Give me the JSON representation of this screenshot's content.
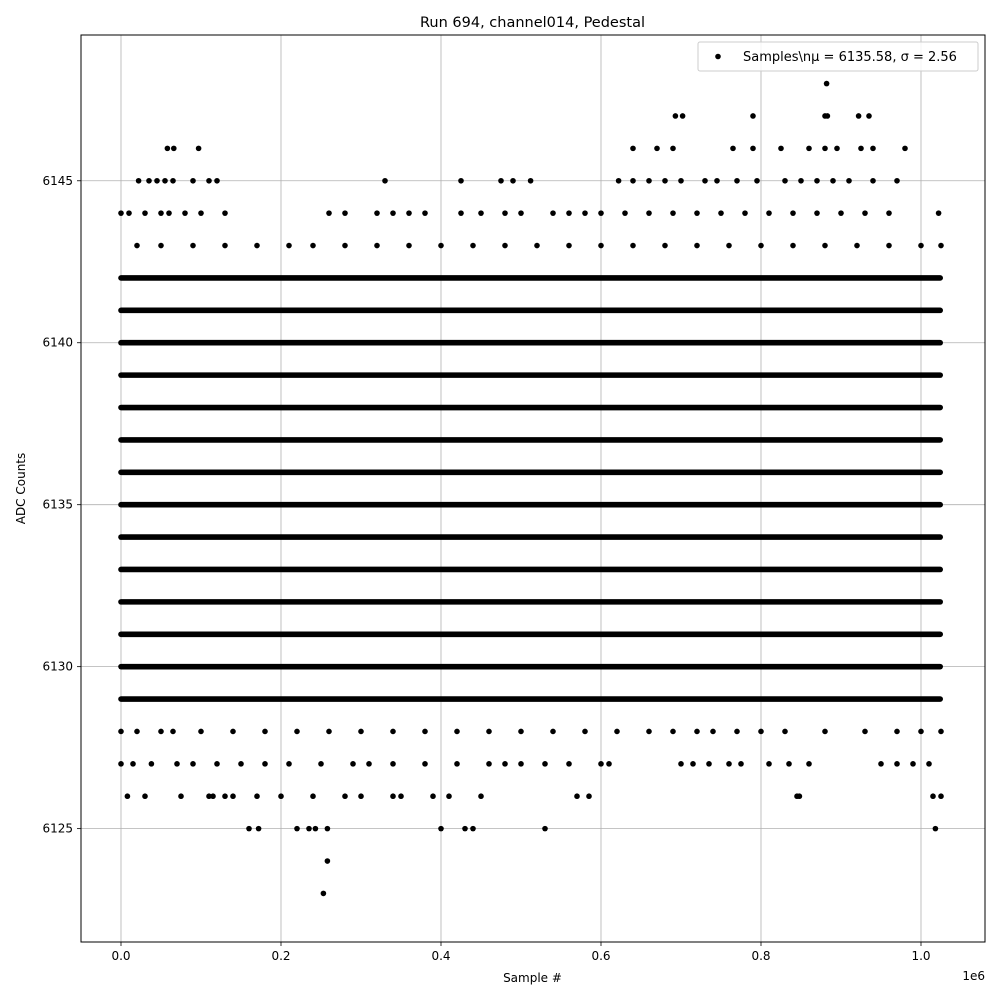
{
  "chart_data": {
    "type": "scatter",
    "title": "Run 694, channel014, Pedestal",
    "xlabel": "Sample #",
    "ylabel": "ADC Counts",
    "x_offset_label": "1e6",
    "xlim": [
      -50000,
      1080000
    ],
    "ylim": [
      6121.5,
      6149.5
    ],
    "x_ticks": [
      0,
      200000,
      400000,
      600000,
      800000,
      1000000
    ],
    "x_tick_labels": [
      "0.0",
      "0.2",
      "0.4",
      "0.6",
      "0.8",
      "1.0"
    ],
    "y_ticks": [
      6125,
      6130,
      6135,
      6140,
      6145
    ],
    "y_tick_labels": [
      "6125",
      "6130",
      "6135",
      "6140",
      "6145"
    ],
    "grid": true,
    "legend_placement": "top-right",
    "marker_color": "#000000",
    "series": [
      {
        "name": "Samples\\nμ = 6135.58, σ = 2.56",
        "x_range": [
          0,
          1024000
        ],
        "continuous_levels": [
          6129,
          6130,
          6131,
          6132,
          6133,
          6134,
          6135,
          6136,
          6137,
          6138,
          6139,
          6140,
          6141,
          6142
        ],
        "sparse_points": [
          [
            253000,
            6123
          ],
          [
            258000,
            6124
          ],
          [
            160000,
            6125
          ],
          [
            172000,
            6125
          ],
          [
            220000,
            6125
          ],
          [
            235000,
            6125
          ],
          [
            243000,
            6125
          ],
          [
            258000,
            6125
          ],
          [
            400000,
            6125
          ],
          [
            430000,
            6125
          ],
          [
            440000,
            6125
          ],
          [
            530000,
            6125
          ],
          [
            1018000,
            6125
          ],
          [
            8000,
            6126
          ],
          [
            30000,
            6126
          ],
          [
            75000,
            6126
          ],
          [
            110000,
            6126
          ],
          [
            115000,
            6126
          ],
          [
            130000,
            6126
          ],
          [
            140000,
            6126
          ],
          [
            170000,
            6126
          ],
          [
            200000,
            6126
          ],
          [
            240000,
            6126
          ],
          [
            280000,
            6126
          ],
          [
            300000,
            6126
          ],
          [
            340000,
            6126
          ],
          [
            350000,
            6126
          ],
          [
            390000,
            6126
          ],
          [
            410000,
            6126
          ],
          [
            450000,
            6126
          ],
          [
            570000,
            6126
          ],
          [
            585000,
            6126
          ],
          [
            845000,
            6126
          ],
          [
            848000,
            6126
          ],
          [
            1015000,
            6126
          ],
          [
            1025000,
            6126
          ],
          [
            0,
            6127
          ],
          [
            15000,
            6127
          ],
          [
            38000,
            6127
          ],
          [
            70000,
            6127
          ],
          [
            90000,
            6127
          ],
          [
            120000,
            6127
          ],
          [
            150000,
            6127
          ],
          [
            180000,
            6127
          ],
          [
            210000,
            6127
          ],
          [
            250000,
            6127
          ],
          [
            290000,
            6127
          ],
          [
            310000,
            6127
          ],
          [
            340000,
            6127
          ],
          [
            380000,
            6127
          ],
          [
            420000,
            6127
          ],
          [
            460000,
            6127
          ],
          [
            480000,
            6127
          ],
          [
            500000,
            6127
          ],
          [
            530000,
            6127
          ],
          [
            560000,
            6127
          ],
          [
            600000,
            6127
          ],
          [
            610000,
            6127
          ],
          [
            700000,
            6127
          ],
          [
            715000,
            6127
          ],
          [
            735000,
            6127
          ],
          [
            760000,
            6127
          ],
          [
            775000,
            6127
          ],
          [
            810000,
            6127
          ],
          [
            835000,
            6127
          ],
          [
            860000,
            6127
          ],
          [
            950000,
            6127
          ],
          [
            970000,
            6127
          ],
          [
            990000,
            6127
          ],
          [
            1010000,
            6127
          ],
          [
            0,
            6128
          ],
          [
            20000,
            6128
          ],
          [
            50000,
            6128
          ],
          [
            65000,
            6128
          ],
          [
            100000,
            6128
          ],
          [
            140000,
            6128
          ],
          [
            180000,
            6128
          ],
          [
            220000,
            6128
          ],
          [
            260000,
            6128
          ],
          [
            300000,
            6128
          ],
          [
            340000,
            6128
          ],
          [
            380000,
            6128
          ],
          [
            420000,
            6128
          ],
          [
            460000,
            6128
          ],
          [
            500000,
            6128
          ],
          [
            540000,
            6128
          ],
          [
            580000,
            6128
          ],
          [
            620000,
            6128
          ],
          [
            660000,
            6128
          ],
          [
            690000,
            6128
          ],
          [
            720000,
            6128
          ],
          [
            740000,
            6128
          ],
          [
            770000,
            6128
          ],
          [
            800000,
            6128
          ],
          [
            830000,
            6128
          ],
          [
            880000,
            6128
          ],
          [
            930000,
            6128
          ],
          [
            970000,
            6128
          ],
          [
            1000000,
            6128
          ],
          [
            1025000,
            6128
          ],
          [
            20000,
            6143
          ],
          [
            50000,
            6143
          ],
          [
            90000,
            6143
          ],
          [
            130000,
            6143
          ],
          [
            170000,
            6143
          ],
          [
            210000,
            6143
          ],
          [
            240000,
            6143
          ],
          [
            280000,
            6143
          ],
          [
            320000,
            6143
          ],
          [
            360000,
            6143
          ],
          [
            400000,
            6143
          ],
          [
            440000,
            6143
          ],
          [
            480000,
            6143
          ],
          [
            520000,
            6143
          ],
          [
            560000,
            6143
          ],
          [
            600000,
            6143
          ],
          [
            640000,
            6143
          ],
          [
            680000,
            6143
          ],
          [
            720000,
            6143
          ],
          [
            760000,
            6143
          ],
          [
            800000,
            6143
          ],
          [
            840000,
            6143
          ],
          [
            880000,
            6143
          ],
          [
            920000,
            6143
          ],
          [
            960000,
            6143
          ],
          [
            1000000,
            6143
          ],
          [
            1025000,
            6143
          ],
          [
            0,
            6144
          ],
          [
            10000,
            6144
          ],
          [
            30000,
            6144
          ],
          [
            50000,
            6144
          ],
          [
            60000,
            6144
          ],
          [
            80000,
            6144
          ],
          [
            100000,
            6144
          ],
          [
            130000,
            6144
          ],
          [
            260000,
            6144
          ],
          [
            280000,
            6144
          ],
          [
            320000,
            6144
          ],
          [
            340000,
            6144
          ],
          [
            360000,
            6144
          ],
          [
            380000,
            6144
          ],
          [
            425000,
            6144
          ],
          [
            450000,
            6144
          ],
          [
            480000,
            6144
          ],
          [
            500000,
            6144
          ],
          [
            540000,
            6144
          ],
          [
            560000,
            6144
          ],
          [
            580000,
            6144
          ],
          [
            600000,
            6144
          ],
          [
            630000,
            6144
          ],
          [
            660000,
            6144
          ],
          [
            690000,
            6144
          ],
          [
            720000,
            6144
          ],
          [
            750000,
            6144
          ],
          [
            780000,
            6144
          ],
          [
            810000,
            6144
          ],
          [
            840000,
            6144
          ],
          [
            870000,
            6144
          ],
          [
            900000,
            6144
          ],
          [
            930000,
            6144
          ],
          [
            960000,
            6144
          ],
          [
            1022000,
            6144
          ],
          [
            22000,
            6145
          ],
          [
            35000,
            6145
          ],
          [
            45000,
            6145
          ],
          [
            55000,
            6145
          ],
          [
            65000,
            6145
          ],
          [
            90000,
            6145
          ],
          [
            110000,
            6145
          ],
          [
            120000,
            6145
          ],
          [
            330000,
            6145
          ],
          [
            425000,
            6145
          ],
          [
            475000,
            6145
          ],
          [
            490000,
            6145
          ],
          [
            512000,
            6145
          ],
          [
            622000,
            6145
          ],
          [
            640000,
            6145
          ],
          [
            660000,
            6145
          ],
          [
            680000,
            6145
          ],
          [
            700000,
            6145
          ],
          [
            730000,
            6145
          ],
          [
            745000,
            6145
          ],
          [
            770000,
            6145
          ],
          [
            795000,
            6145
          ],
          [
            830000,
            6145
          ],
          [
            850000,
            6145
          ],
          [
            870000,
            6145
          ],
          [
            890000,
            6145
          ],
          [
            910000,
            6145
          ],
          [
            940000,
            6145
          ],
          [
            970000,
            6145
          ],
          [
            58000,
            6146
          ],
          [
            66000,
            6146
          ],
          [
            97000,
            6146
          ],
          [
            640000,
            6146
          ],
          [
            670000,
            6146
          ],
          [
            690000,
            6146
          ],
          [
            765000,
            6146
          ],
          [
            790000,
            6146
          ],
          [
            825000,
            6146
          ],
          [
            860000,
            6146
          ],
          [
            880000,
            6146
          ],
          [
            895000,
            6146
          ],
          [
            925000,
            6146
          ],
          [
            940000,
            6146
          ],
          [
            980000,
            6146
          ],
          [
            693000,
            6147
          ],
          [
            702000,
            6147
          ],
          [
            790000,
            6147
          ],
          [
            880000,
            6147
          ],
          [
            883000,
            6147
          ],
          [
            922000,
            6147
          ],
          [
            935000,
            6147
          ],
          [
            882000,
            6148
          ]
        ]
      }
    ]
  }
}
